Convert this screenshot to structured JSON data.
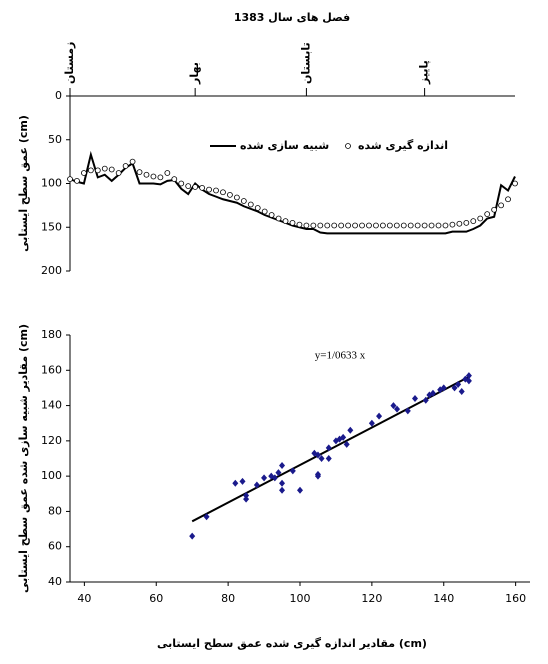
{
  "chart_data": [
    {
      "type": "line",
      "title": "فصل های سال 1383",
      "y_label": "عمق سطح ایستابی (cm)",
      "x": [
        0,
        1,
        2,
        3,
        4,
        5,
        6,
        7,
        8,
        9,
        10,
        11,
        12,
        13,
        14,
        15,
        16,
        17,
        18,
        19,
        20,
        21,
        22,
        23,
        24,
        25,
        26,
        27,
        28,
        29,
        30,
        31,
        32,
        33,
        34,
        35,
        36,
        37,
        38,
        39,
        40,
        41,
        42,
        43,
        44,
        45,
        46,
        47,
        48,
        49,
        50,
        51,
        52,
        53,
        54,
        55,
        56,
        57,
        58,
        59,
        60,
        61,
        62,
        63,
        64
      ],
      "xlim": [
        0,
        64
      ],
      "xticks": [
        {
          "value": 0,
          "label": "زمستان"
        },
        {
          "value": 18,
          "label": "بهار"
        },
        {
          "value": 34,
          "label": "تابستان"
        },
        {
          "value": 51,
          "label": "پاییز"
        }
      ],
      "ylim": [
        0,
        200
      ],
      "yticks": [
        0,
        50,
        100,
        150,
        200
      ],
      "invert_y": true,
      "legend": "top",
      "series": [
        {
          "name": "شبیه سازی شده",
          "color": "#000000",
          "style": "line",
          "values": [
            95,
            98,
            100,
            67,
            93,
            90,
            97,
            90,
            82,
            77,
            100,
            100,
            100,
            101,
            97,
            96,
            106,
            112,
            100,
            107,
            112,
            115,
            118,
            120,
            122,
            126,
            129,
            132,
            136,
            139,
            142,
            145,
            148,
            150,
            152,
            152,
            156,
            157,
            157,
            157,
            157,
            157,
            157,
            157,
            157,
            157,
            157,
            157,
            157,
            157,
            157,
            157,
            157,
            157,
            157,
            155,
            155,
            155,
            152,
            148,
            140,
            138,
            102,
            108,
            92
          ]
        },
        {
          "name": "اندازه گیری شده",
          "color": "#000000",
          "style": "circle",
          "values": [
            95,
            97,
            88,
            85,
            85,
            83,
            84,
            88,
            80,
            75,
            87,
            90,
            92,
            93,
            88,
            95,
            100,
            103,
            104,
            105,
            107,
            108,
            110,
            113,
            116,
            120,
            124,
            128,
            132,
            136,
            140,
            143,
            145,
            147,
            148,
            148,
            148,
            148,
            148,
            148,
            148,
            148,
            148,
            148,
            148,
            148,
            148,
            148,
            148,
            148,
            148,
            148,
            148,
            148,
            148,
            147,
            146,
            145,
            143,
            140,
            135,
            130,
            125,
            118,
            100
          ]
        }
      ]
    },
    {
      "type": "scatter",
      "annotation": "y=1/0633 x",
      "x_label": "مقادیر اندازه گیری شده عمق سطح ایستابی (cm)",
      "y_label": "مقادیر شبیه سازی شده عمق سطح ایستابی (cm)",
      "xlim": [
        36,
        164
      ],
      "xticks": [
        40,
        60,
        80,
        100,
        120,
        140,
        160
      ],
      "ylim": [
        40,
        180
      ],
      "yticks": [
        40,
        60,
        80,
        100,
        120,
        140,
        160,
        180
      ],
      "color": "#1a1a8c",
      "x": [
        70,
        74,
        82,
        84,
        85,
        85,
        88,
        90,
        92,
        93,
        94,
        95,
        95,
        95,
        98,
        100,
        104,
        105,
        105,
        105,
        106,
        108,
        108,
        110,
        112,
        113,
        114,
        120,
        122,
        126,
        127,
        130,
        132,
        135,
        137,
        139,
        140,
        144,
        145,
        146,
        147,
        147,
        143,
        136,
        111
      ],
      "values": [
        66,
        77,
        96,
        97,
        87,
        89,
        95,
        99,
        100,
        99,
        102,
        106,
        96,
        92,
        103,
        92,
        113,
        112,
        101,
        100,
        110,
        110,
        116,
        120,
        122,
        118,
        126,
        130,
        134,
        140,
        138,
        137,
        144,
        143,
        147,
        149,
        150,
        152,
        148,
        155,
        157,
        154,
        150,
        146,
        121
      ],
      "fit": {
        "x": [
          70,
          147
        ],
        "values": [
          74.4,
          156.3
        ],
        "color": "#000000"
      }
    }
  ]
}
